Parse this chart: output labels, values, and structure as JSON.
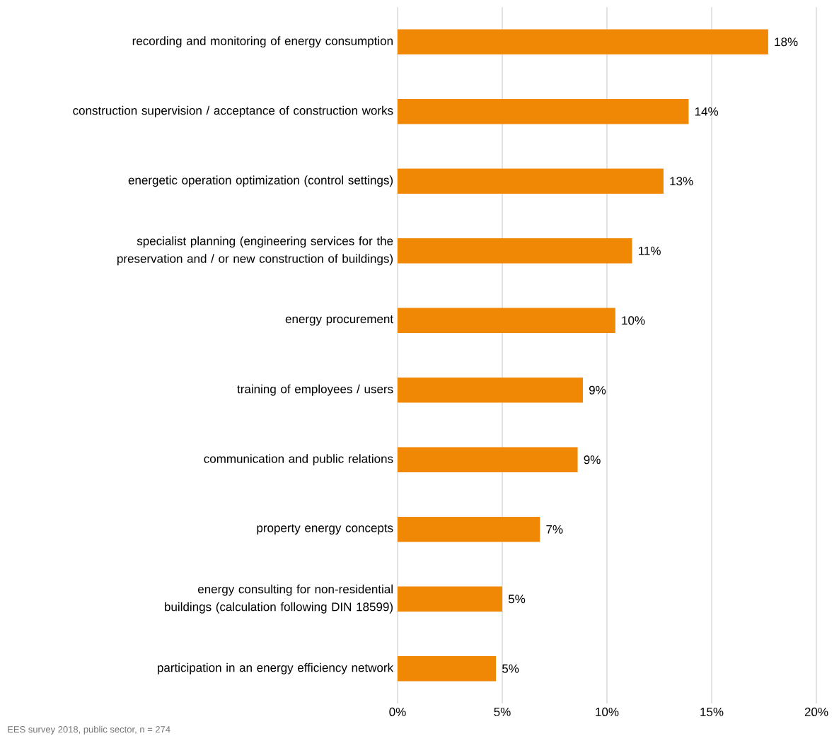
{
  "chart_data": {
    "type": "bar",
    "orientation": "horizontal",
    "categories": [
      "recording and monitoring of energy consumption",
      "construction supervision / acceptance of construction works",
      "energetic operation optimization (control settings)",
      "specialist planning (engineering services for the preservation and / or new construction of buildings)",
      "energy procurement",
      "training of employees / users",
      "communication and public relations",
      "property energy concepts",
      "energy consulting for non-residential buildings (calculation following DIN 18599)",
      "participation in an energy efficiency network"
    ],
    "values": [
      17.7,
      13.9,
      12.7,
      11.2,
      10.4,
      8.85,
      8.6,
      6.8,
      5.0,
      4.7
    ],
    "value_labels": [
      "18%",
      "14%",
      "13%",
      "11%",
      "10%",
      "9%",
      "9%",
      "7%",
      "5%",
      "5%"
    ],
    "color": "#f18805",
    "xlim": [
      0,
      20
    ],
    "xticks": [
      {
        "value": 0,
        "label": "0%"
      },
      {
        "value": 5,
        "label": "5%"
      },
      {
        "value": 10,
        "label": "10%"
      },
      {
        "value": 15,
        "label": "15%"
      },
      {
        "value": 20,
        "label": "20%"
      }
    ],
    "grid": "x",
    "annotations": [
      "EES survey 2018, public sector, n = 274"
    ]
  }
}
